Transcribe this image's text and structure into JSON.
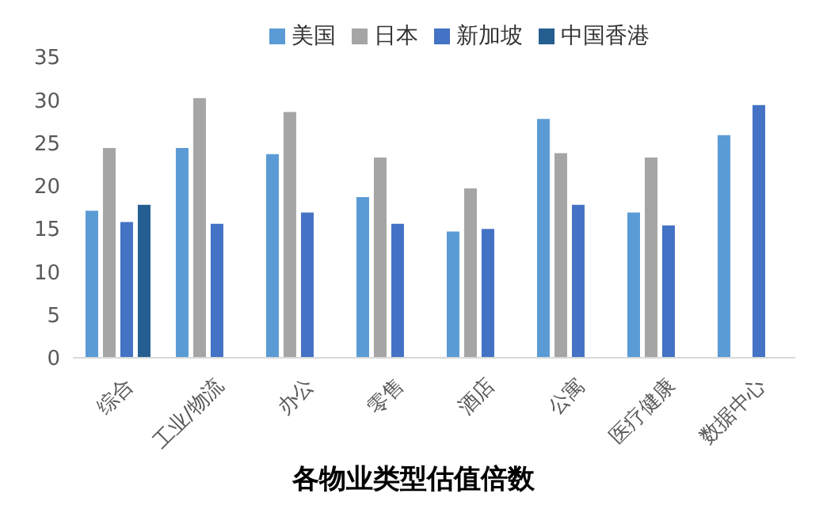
{
  "chart_data": {
    "type": "bar",
    "xlabel": "各物业类型估值倍数",
    "categories": [
      "综合",
      "工业/物流",
      "办公",
      "零售",
      "酒店",
      "公寓",
      "医疗健康",
      "数据中心"
    ],
    "series": [
      {
        "name": "美国",
        "color": "#5b9bd5",
        "values": [
          17.1,
          24.4,
          23.7,
          18.7,
          14.7,
          27.8,
          16.9,
          25.9
        ]
      },
      {
        "name": "日本",
        "color": "#a5a5a5",
        "values": [
          24.4,
          30.2,
          28.6,
          23.3,
          19.7,
          23.8,
          23.3,
          null
        ]
      },
      {
        "name": "新加坡",
        "color": "#4472c4",
        "values": [
          15.8,
          15.6,
          16.9,
          15.6,
          15.0,
          17.8,
          15.4,
          29.4
        ]
      },
      {
        "name": "中国香港",
        "color": "#255e91",
        "values": [
          17.8,
          null,
          null,
          null,
          null,
          null,
          null,
          null
        ]
      }
    ],
    "ylim": [
      0,
      35
    ],
    "yticks": [
      0,
      5,
      10,
      15,
      20,
      25,
      30,
      35
    ],
    "grid": false,
    "legend": "top"
  }
}
